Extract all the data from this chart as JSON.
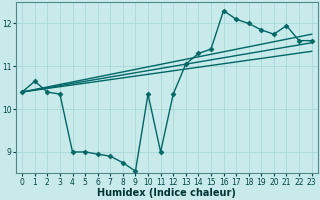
{
  "xlabel": "Humidex (Indice chaleur)",
  "background_color": "#c8eaea",
  "grid_color": "#a8d8d8",
  "line_color": "#006666",
  "xlim": [
    -0.5,
    23.5
  ],
  "ylim": [
    8.5,
    12.5
  ],
  "xticks": [
    0,
    1,
    2,
    3,
    4,
    5,
    6,
    7,
    8,
    9,
    10,
    11,
    12,
    13,
    14,
    15,
    16,
    17,
    18,
    19,
    20,
    21,
    22,
    23
  ],
  "yticks": [
    9,
    10,
    11,
    12
  ],
  "series": [
    [
      0,
      10.4
    ],
    [
      1,
      10.65
    ],
    [
      2,
      10.4
    ],
    [
      3,
      10.35
    ],
    [
      4,
      9.0
    ],
    [
      5,
      9.0
    ],
    [
      6,
      8.95
    ],
    [
      7,
      8.9
    ],
    [
      8,
      8.75
    ],
    [
      9,
      8.55
    ],
    [
      10,
      10.35
    ],
    [
      11,
      9.0
    ],
    [
      12,
      10.35
    ],
    [
      13,
      11.05
    ],
    [
      14,
      11.3
    ],
    [
      15,
      11.4
    ],
    [
      16,
      12.3
    ],
    [
      17,
      12.1
    ],
    [
      18,
      12.0
    ],
    [
      19,
      11.85
    ],
    [
      20,
      11.75
    ],
    [
      21,
      11.95
    ],
    [
      22,
      11.6
    ],
    [
      23,
      11.6
    ]
  ],
  "trend_lines": [
    {
      "x0": 0,
      "y0": 10.4,
      "x1": 23,
      "y1": 11.75
    },
    {
      "x0": 0,
      "y0": 10.4,
      "x1": 23,
      "y1": 11.55
    },
    {
      "x0": 0,
      "y0": 10.4,
      "x1": 23,
      "y1": 11.35
    }
  ],
  "marker_size": 2.5,
  "line_width": 1.0,
  "xlabel_fontsize": 7,
  "tick_fontsize": 5.5
}
